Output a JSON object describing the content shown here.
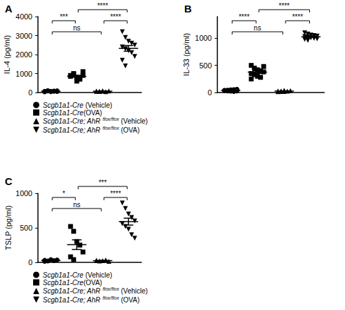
{
  "chart_data": [
    {
      "type": "scatter",
      "title": "A",
      "ylabel": "IL-4 (pg/ml)",
      "ylim": [
        0,
        4000
      ],
      "yticks": [
        0,
        1000,
        2000,
        3000,
        4000
      ],
      "grid": false,
      "tick_labels": "y",
      "legend": "bottom",
      "series": [
        {
          "name": "Scgb1a1-Cre (Vehicle)",
          "color": "#000000",
          "marker": "circle",
          "values": [
            60,
            80,
            50,
            70,
            90,
            40,
            100,
            60,
            75,
            55
          ],
          "mean": 68,
          "sem": 6
        },
        {
          "name": "Scgb1a1-Cre(OVA)",
          "color": "#000000",
          "marker": "square",
          "values": [
            900,
            1000,
            800,
            700,
            1100,
            850,
            950,
            600,
            750,
            900
          ],
          "mean": 855,
          "sem": 50
        },
        {
          "name": "Scgb1a1-Cre; AhR flox/flox (Vehicle)",
          "color": "#000000",
          "marker": "triangle",
          "values": [
            70,
            60,
            90,
            50,
            80,
            65,
            55,
            75
          ],
          "mean": 68,
          "sem": 5
        },
        {
          "name": "Scgb1a1-Cre; AhR flox/flox (OVA)",
          "color": "#000000",
          "marker": "triangle-down",
          "values": [
            3200,
            2900,
            2700,
            2600,
            2500,
            2400,
            2300,
            2200,
            2100,
            1900,
            1700,
            1400
          ],
          "mean": 2325,
          "sem": 150
        }
      ],
      "comparisons": [
        {
          "from": 1,
          "to": 3,
          "label": "****"
        },
        {
          "from": 0,
          "to": 1,
          "label": "***"
        },
        {
          "from": 0,
          "to": 2,
          "label": "ns"
        },
        {
          "from": 2,
          "to": 3,
          "label": "****"
        }
      ]
    },
    {
      "type": "scatter",
      "title": "B",
      "ylabel": "IL-33 (pg/ml)",
      "ylim": [
        0,
        1400
      ],
      "yticks": [
        0,
        500,
        1000
      ],
      "grid": false,
      "tick_labels": "y",
      "series": [
        {
          "name": "Scgb1a1-Cre (Vehicle)",
          "color": "#000000",
          "marker": "circle",
          "values": [
            40,
            30,
            50,
            20,
            60,
            35,
            45,
            25,
            55,
            30
          ],
          "mean": 39,
          "sem": 4
        },
        {
          "name": "Scgb1a1-Cre(OVA)",
          "color": "#000000",
          "marker": "square",
          "values": [
            500,
            450,
            420,
            400,
            380,
            350,
            330,
            300,
            280,
            480,
            250
          ],
          "mean": 376,
          "sem": 23
        },
        {
          "name": "Scgb1a1-Cre; AhR flox/flox (Vehicle)",
          "color": "#000000",
          "marker": "triangle",
          "values": [
            30,
            20,
            40,
            25,
            35,
            15,
            30,
            20
          ],
          "mean": 27,
          "sem": 3
        },
        {
          "name": "Scgb1a1-Cre; AhR flox/flox (OVA)",
          "color": "#000000",
          "marker": "triangle-down",
          "values": [
            1100,
            1080,
            1060,
            1050,
            1040,
            1030,
            1020,
            1010,
            1000,
            990,
            980,
            960
          ],
          "mean": 1027,
          "sem": 11
        }
      ],
      "comparisons": [
        {
          "from": 1,
          "to": 3,
          "label": "****"
        },
        {
          "from": 0,
          "to": 1,
          "label": "****"
        },
        {
          "from": 0,
          "to": 2,
          "label": "ns"
        },
        {
          "from": 2,
          "to": 3,
          "label": "****"
        }
      ]
    },
    {
      "type": "scatter",
      "title": "C",
      "ylabel": "TSLP (pg/ml)",
      "ylim": [
        0,
        1000
      ],
      "yticks": [
        0,
        500,
        1000
      ],
      "grid": false,
      "tick_labels": "y",
      "legend": "bottom",
      "series": [
        {
          "name": "Scgb1a1-Cre (Vehicle)",
          "color": "#000000",
          "marker": "circle",
          "values": [
            30,
            20,
            40,
            25,
            35,
            15
          ],
          "mean": 28,
          "sem": 4
        },
        {
          "name": "Scgb1a1-Cre(OVA)",
          "color": "#000000",
          "marker": "square",
          "values": [
            520,
            450,
            300,
            250,
            150,
            80,
            40
          ],
          "mean": 256,
          "sem": 70
        },
        {
          "name": "Scgb1a1-Cre; AhR flox/flox (Vehicle)",
          "color": "#000000",
          "marker": "triangle",
          "values": [
            30,
            20,
            25,
            35,
            15,
            25
          ],
          "mean": 25,
          "sem": 3
        },
        {
          "name": "Scgb1a1-Cre; AhR flox/flox (OVA)",
          "color": "#000000",
          "marker": "triangle-down",
          "values": [
            860,
            780,
            700,
            650,
            600,
            560,
            520,
            480,
            400,
            350
          ],
          "mean": 590,
          "sem": 50
        }
      ],
      "comparisons": [
        {
          "from": 1,
          "to": 3,
          "label": "***"
        },
        {
          "from": 0,
          "to": 1,
          "label": "*"
        },
        {
          "from": 0,
          "to": 2,
          "label": "ns"
        },
        {
          "from": 2,
          "to": 3,
          "label": "****"
        }
      ]
    }
  ]
}
